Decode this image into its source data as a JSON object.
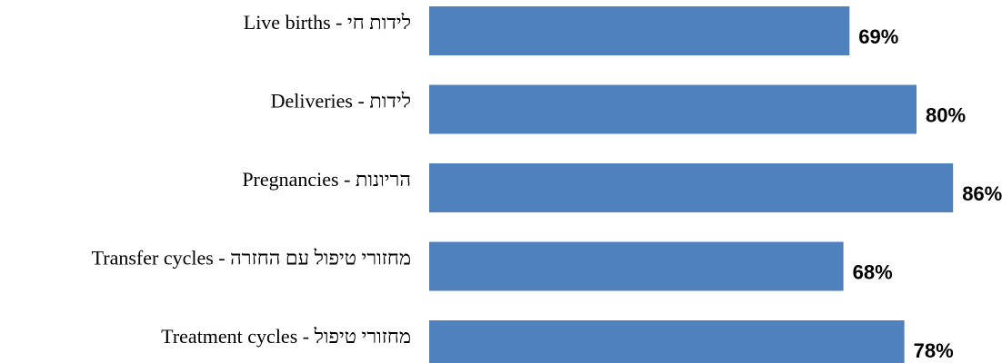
{
  "chart_data": {
    "type": "bar",
    "orientation": "horizontal",
    "title": "",
    "xlabel": "",
    "ylabel": "",
    "categories": [
      "Live births -  לידות חי",
      "Deliveries - לידות",
      "Pregnancies - הריונות",
      "Transfer cycles - מחזורי טיפול עם החזרה",
      "Treatment cycles - מחזורי טיפול"
    ],
    "values": [
      69,
      80,
      86,
      68,
      78
    ],
    "value_labels": [
      "69%",
      "80%",
      "86%",
      "68%",
      "78%"
    ],
    "unit": "%",
    "xlim": [
      0,
      100
    ],
    "grid": false,
    "legend": "none",
    "bar_color": "#4F81BD"
  }
}
